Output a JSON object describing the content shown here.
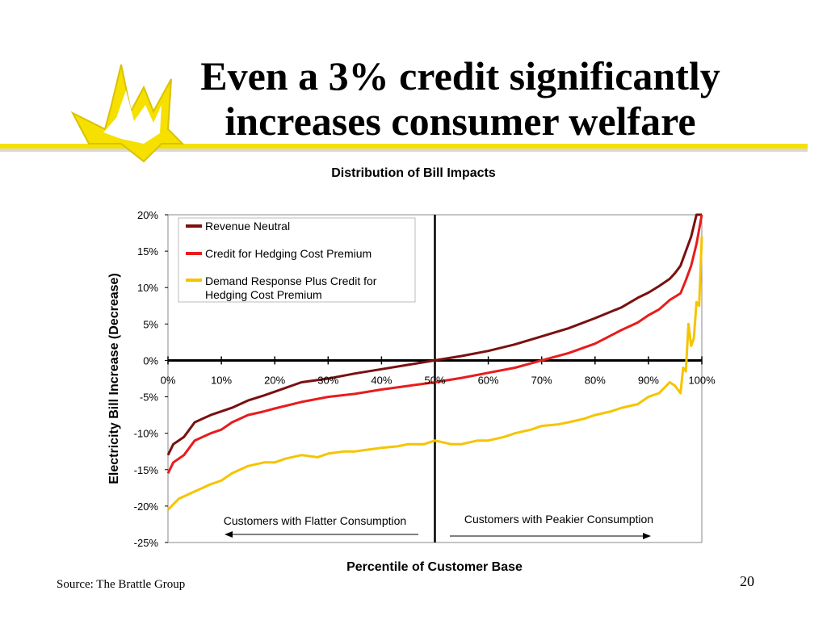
{
  "slide": {
    "title_line1": "Even a 3% credit significantly",
    "title_line2": "increases consumer welfare",
    "source": "Source: The Brattle Group",
    "page_number": "20"
  },
  "chart_data": {
    "type": "line",
    "title": "Distribution of Bill Impacts",
    "xlabel": "Percentile of Customer Base",
    "ylabel": "Electricity Bill Increase (Decrease)",
    "xlim": [
      0,
      100
    ],
    "ylim": [
      -25,
      20
    ],
    "x_ticks": [
      "0%",
      "10%",
      "20%",
      "30%",
      "40%",
      "50%",
      "60%",
      "70%",
      "80%",
      "90%",
      "100%"
    ],
    "y_ticks": [
      "20%",
      "15%",
      "10%",
      "5%",
      "0%",
      "-5%",
      "-10%",
      "-15%",
      "-20%",
      "-25%"
    ],
    "legend_position": "top-left",
    "series": [
      {
        "name": "Revenue Neutral",
        "color": "#7a1010",
        "x": [
          0,
          1,
          3,
          5,
          8,
          10,
          12,
          15,
          18,
          20,
          25,
          30,
          35,
          40,
          45,
          50,
          55,
          60,
          65,
          70,
          75,
          80,
          85,
          88,
          90,
          92,
          94,
          95,
          96,
          97,
          98,
          99,
          100
        ],
        "y": [
          -13,
          -11.5,
          -10.5,
          -8.5,
          -7.5,
          -7,
          -6.5,
          -5.5,
          -4.8,
          -4.3,
          -3,
          -2.5,
          -1.8,
          -1.2,
          -0.6,
          0,
          0.6,
          1.3,
          2.2,
          3.3,
          4.4,
          5.8,
          7.3,
          8.6,
          9.3,
          10.2,
          11.2,
          12,
          13,
          15,
          17,
          20,
          21
        ]
      },
      {
        "name": "Credit for Hedging Cost Premium",
        "color": "#e81c1c",
        "x": [
          0,
          1,
          3,
          5,
          8,
          10,
          12,
          15,
          18,
          20,
          25,
          30,
          35,
          40,
          45,
          50,
          55,
          60,
          65,
          70,
          75,
          80,
          85,
          88,
          90,
          92,
          94,
          96,
          97,
          98,
          99,
          100
        ],
        "y": [
          -15.5,
          -14,
          -13,
          -11,
          -10,
          -9.5,
          -8.5,
          -7.5,
          -7,
          -6.6,
          -5.7,
          -5,
          -4.6,
          -4,
          -3.5,
          -3,
          -2.4,
          -1.7,
          -1,
          0,
          1,
          2.3,
          4.2,
          5.2,
          6.2,
          7,
          8.3,
          9.2,
          11,
          13,
          16,
          21
        ]
      },
      {
        "name": "Demand Response Plus Credit for Hedging Cost Premium",
        "color": "#f5c400",
        "x": [
          0,
          2,
          5,
          8,
          10,
          12,
          15,
          18,
          20,
          22,
          25,
          28,
          30,
          33,
          35,
          38,
          40,
          43,
          45,
          48,
          50,
          53,
          55,
          58,
          60,
          63,
          65,
          68,
          70,
          73,
          75,
          78,
          80,
          83,
          85,
          88,
          90,
          92,
          94,
          95,
          96,
          96.5,
          97,
          97.5,
          98,
          98.5,
          99,
          99.5,
          100
        ],
        "y": [
          -20.5,
          -19,
          -18,
          -17,
          -16.5,
          -15.5,
          -14.5,
          -14,
          -14,
          -13.5,
          -13,
          -13.3,
          -12.8,
          -12.5,
          -12.5,
          -12.2,
          -12,
          -11.8,
          -11.5,
          -11.5,
          -11,
          -11.5,
          -11.5,
          -11,
          -11,
          -10.5,
          -10,
          -9.5,
          -9,
          -8.8,
          -8.5,
          -8,
          -7.5,
          -7,
          -6.5,
          -6,
          -5,
          -4.5,
          -3,
          -3.5,
          -4.5,
          -1,
          -1.5,
          5,
          2,
          3,
          8,
          7.5,
          17
        ]
      }
    ],
    "annotations": [
      {
        "label": "Customers with Flatter Consumption",
        "direction": "left"
      },
      {
        "label": "Customers with Peakier Consumption",
        "direction": "right"
      }
    ],
    "divider_x": 50
  }
}
